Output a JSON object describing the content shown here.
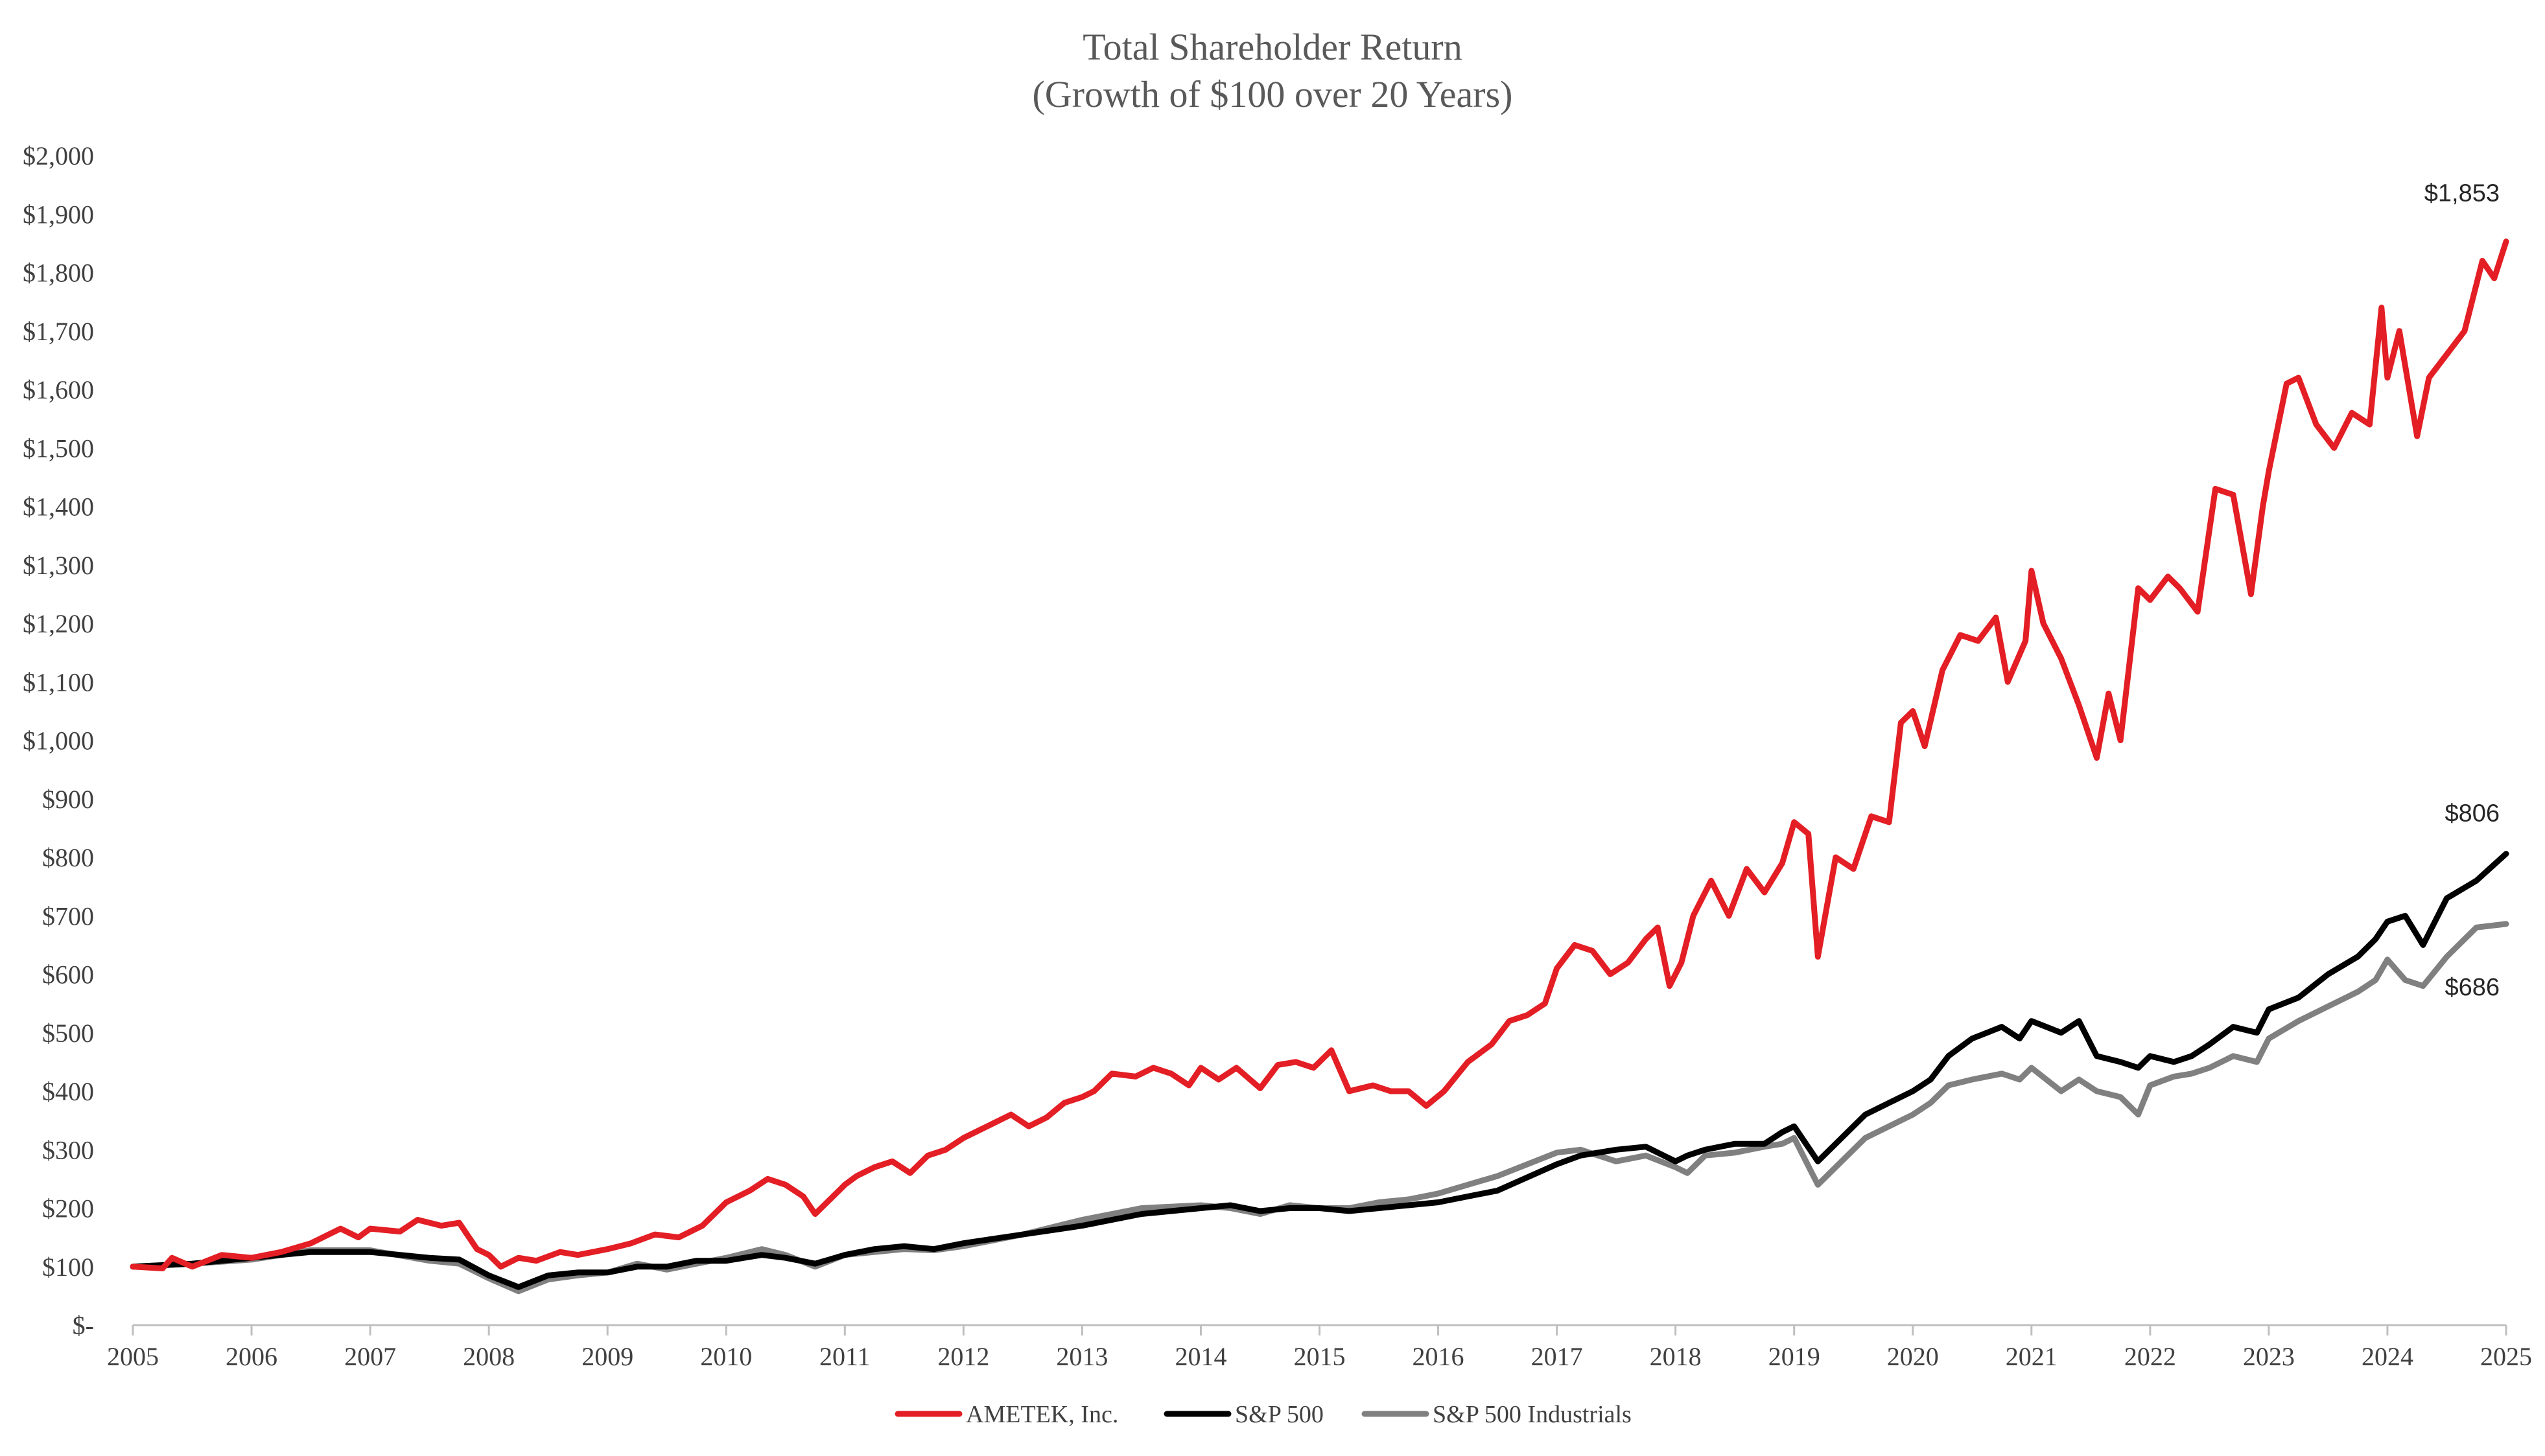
{
  "chart_data": {
    "type": "line",
    "title": "Total Shareholder Return",
    "subtitle": "(Growth of $100 over 20 Years)",
    "xlabel": "",
    "ylabel": "",
    "xlim": [
      2005,
      2025
    ],
    "ylim": [
      0,
      2000
    ],
    "x_ticks": [
      "2005",
      "2006",
      "2007",
      "2008",
      "2009",
      "2010",
      "2011",
      "2012",
      "2013",
      "2014",
      "2015",
      "2016",
      "2017",
      "2018",
      "2019",
      "2020",
      "2021",
      "2022",
      "2023",
      "2024",
      "2025"
    ],
    "y_ticks": [
      "$-",
      "$100",
      "$200",
      "$300",
      "$400",
      "$500",
      "$600",
      "$700",
      "$800",
      "$900",
      "$1,000",
      "$1,100",
      "$1,200",
      "$1,300",
      "$1,400",
      "$1,500",
      "$1,600",
      "$1,700",
      "$1,800",
      "$1,900",
      "$2,000"
    ],
    "grid": false,
    "legend_position": "bottom",
    "series": [
      {
        "name": "AMETEK, Inc.",
        "color": "#e31e24",
        "end_label": "$1,853",
        "x": [
          2005.0,
          2005.25,
          2005.33,
          2005.5,
          2005.75,
          2006.0,
          2006.25,
          2006.5,
          2006.75,
          2006.9,
          2007.0,
          2007.25,
          2007.4,
          2007.6,
          2007.75,
          2007.9,
          2008.0,
          2008.1,
          2008.25,
          2008.4,
          2008.6,
          2008.75,
          2009.0,
          2009.2,
          2009.4,
          2009.6,
          2009.8,
          2010.0,
          2010.2,
          2010.35,
          2010.5,
          2010.65,
          2010.75,
          2010.9,
          2011.0,
          2011.1,
          2011.25,
          2011.4,
          2011.55,
          2011.7,
          2011.85,
          2012.0,
          2012.2,
          2012.4,
          2012.55,
          2012.7,
          2012.85,
          2013.0,
          2013.1,
          2013.25,
          2013.45,
          2013.6,
          2013.75,
          2013.9,
          2014.0,
          2014.15,
          2014.3,
          2014.5,
          2014.65,
          2014.8,
          2014.95,
          2015.1,
          2015.25,
          2015.45,
          2015.6,
          2015.75,
          2015.9,
          2016.05,
          2016.25,
          2016.45,
          2016.6,
          2016.75,
          2016.9,
          2017.0,
          2017.15,
          2017.3,
          2017.45,
          2017.6,
          2017.75,
          2017.85,
          2017.95,
          2018.05,
          2018.15,
          2018.3,
          2018.45,
          2018.6,
          2018.75,
          2018.9,
          2019.0,
          2019.12,
          2019.2,
          2019.35,
          2019.5,
          2019.65,
          2019.8,
          2019.9,
          2020.0,
          2020.1,
          2020.25,
          2020.4,
          2020.55,
          2020.7,
          2020.8,
          2020.95,
          2021.0,
          2021.1,
          2021.25,
          2021.4,
          2021.55,
          2021.65,
          2021.75,
          2021.9,
          2022.0,
          2022.15,
          2022.25,
          2022.4,
          2022.55,
          2022.7,
          2022.85,
          2022.95,
          2023.0,
          2023.15,
          2023.25,
          2023.4,
          2023.55,
          2023.7,
          2023.85,
          2023.95,
          2024.0,
          2024.1,
          2024.25,
          2024.35,
          2024.5,
          2024.65,
          2024.8,
          2024.9,
          2025.0
        ],
        "values": [
          100,
          97,
          115,
          100,
          120,
          115,
          125,
          140,
          165,
          150,
          165,
          160,
          180,
          170,
          175,
          130,
          120,
          100,
          115,
          110,
          125,
          120,
          130,
          140,
          155,
          150,
          170,
          210,
          230,
          250,
          240,
          220,
          190,
          220,
          240,
          255,
          270,
          280,
          260,
          290,
          300,
          320,
          340,
          360,
          340,
          355,
          380,
          390,
          400,
          430,
          425,
          440,
          430,
          410,
          440,
          420,
          440,
          405,
          445,
          450,
          440,
          470,
          400,
          410,
          400,
          400,
          375,
          400,
          450,
          480,
          520,
          530,
          550,
          610,
          650,
          640,
          600,
          620,
          660,
          680,
          580,
          620,
          700,
          760,
          700,
          780,
          740,
          790,
          860,
          840,
          630,
          800,
          780,
          870,
          860,
          1030,
          1050,
          990,
          1120,
          1180,
          1170,
          1210,
          1100,
          1170,
          1290,
          1200,
          1140,
          1060,
          970,
          1080,
          1000,
          1260,
          1240,
          1280,
          1260,
          1220,
          1430,
          1420,
          1250,
          1400,
          1460,
          1610,
          1620,
          1540,
          1500,
          1560,
          1540,
          1740,
          1620,
          1700,
          1520,
          1620,
          1660,
          1700,
          1820,
          1790,
          1853
        ]
      },
      {
        "name": "S&P 500",
        "color": "#000000",
        "end_label": "$806",
        "x": [
          2005.0,
          2005.5,
          2006.0,
          2006.5,
          2007.0,
          2007.5,
          2007.75,
          2008.0,
          2008.25,
          2008.5,
          2008.75,
          2009.0,
          2009.25,
          2009.5,
          2009.75,
          2010.0,
          2010.3,
          2010.5,
          2010.75,
          2011.0,
          2011.25,
          2011.5,
          2011.75,
          2012.0,
          2012.5,
          2013.0,
          2013.5,
          2014.0,
          2014.25,
          2014.5,
          2014.75,
          2015.0,
          2015.25,
          2015.5,
          2015.75,
          2016.0,
          2016.5,
          2017.0,
          2017.2,
          2017.5,
          2017.75,
          2018.0,
          2018.1,
          2018.25,
          2018.5,
          2018.75,
          2018.9,
          2019.0,
          2019.2,
          2019.4,
          2019.6,
          2019.8,
          2020.0,
          2020.15,
          2020.3,
          2020.5,
          2020.75,
          2020.9,
          2021.0,
          2021.25,
          2021.4,
          2021.55,
          2021.75,
          2021.9,
          2022.0,
          2022.2,
          2022.35,
          2022.5,
          2022.7,
          2022.9,
          2023.0,
          2023.25,
          2023.5,
          2023.75,
          2023.9,
          2024.0,
          2024.15,
          2024.3,
          2024.5,
          2024.75,
          2025.0
        ],
        "values": [
          100,
          105,
          115,
          125,
          125,
          115,
          112,
          85,
          65,
          85,
          90,
          90,
          100,
          100,
          110,
          110,
          120,
          115,
          105,
          120,
          130,
          135,
          130,
          140,
          155,
          170,
          190,
          200,
          205,
          195,
          200,
          200,
          195,
          200,
          205,
          210,
          230,
          275,
          290,
          300,
          305,
          280,
          290,
          300,
          310,
          310,
          330,
          340,
          280,
          320,
          360,
          380,
          400,
          420,
          460,
          490,
          510,
          490,
          520,
          500,
          520,
          460,
          450,
          440,
          460,
          450,
          460,
          480,
          510,
          500,
          540,
          560,
          600,
          630,
          660,
          690,
          700,
          650,
          730,
          760,
          806
        ]
      },
      {
        "name": "S&P 500 Industrials",
        "color": "#808080",
        "end_label": "$686",
        "x": [
          2005.0,
          2005.5,
          2006.0,
          2006.5,
          2007.0,
          2007.5,
          2007.75,
          2008.0,
          2008.25,
          2008.5,
          2008.75,
          2009.0,
          2009.25,
          2009.5,
          2009.75,
          2010.0,
          2010.3,
          2010.5,
          2010.75,
          2011.0,
          2011.25,
          2011.5,
          2011.75,
          2012.0,
          2012.5,
          2013.0,
          2013.5,
          2014.0,
          2014.25,
          2014.5,
          2014.75,
          2015.0,
          2015.25,
          2015.5,
          2015.75,
          2016.0,
          2016.5,
          2017.0,
          2017.2,
          2017.5,
          2017.75,
          2018.0,
          2018.1,
          2018.25,
          2018.5,
          2018.75,
          2018.9,
          2019.0,
          2019.2,
          2019.4,
          2019.6,
          2019.8,
          2020.0,
          2020.15,
          2020.3,
          2020.5,
          2020.75,
          2020.9,
          2021.0,
          2021.25,
          2021.4,
          2021.55,
          2021.75,
          2021.9,
          2022.0,
          2022.2,
          2022.35,
          2022.5,
          2022.7,
          2022.9,
          2023.0,
          2023.25,
          2023.5,
          2023.75,
          2023.9,
          2024.0,
          2024.15,
          2024.3,
          2024.5,
          2024.75,
          2025.0
        ],
        "values": [
          100,
          105,
          112,
          128,
          128,
          110,
          105,
          80,
          58,
          78,
          85,
          90,
          105,
          95,
          105,
          115,
          130,
          120,
          100,
          120,
          125,
          130,
          128,
          135,
          155,
          180,
          200,
          205,
          200,
          190,
          205,
          200,
          200,
          210,
          215,
          225,
          255,
          295,
          300,
          280,
          290,
          270,
          260,
          290,
          295,
          305,
          310,
          320,
          240,
          280,
          320,
          340,
          360,
          380,
          410,
          420,
          430,
          420,
          440,
          400,
          420,
          400,
          390,
          360,
          410,
          425,
          430,
          440,
          460,
          450,
          490,
          520,
          545,
          570,
          590,
          625,
          590,
          580,
          630,
          680,
          686
        ]
      }
    ]
  }
}
